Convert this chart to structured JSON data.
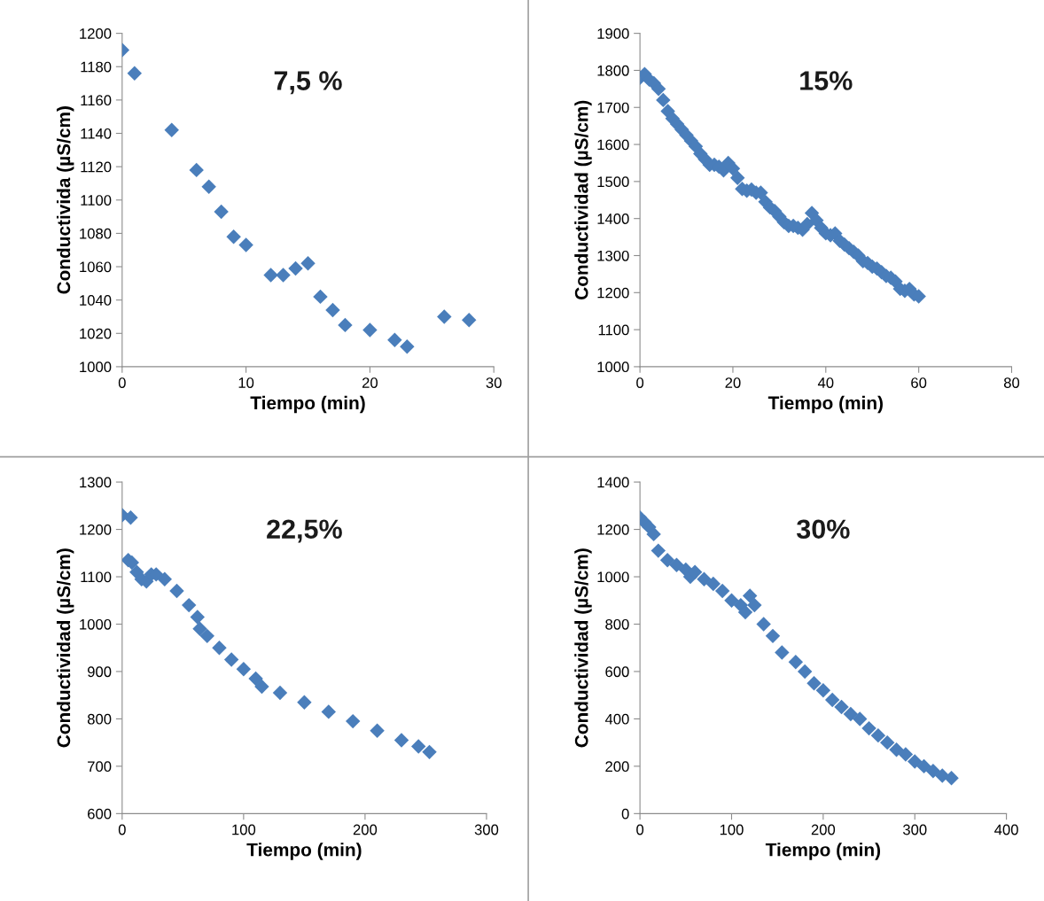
{
  "chart_data": [
    {
      "type": "scatter",
      "title": "7,5 %",
      "xlabel": "Tiempo (min)",
      "ylabel": "Conductivida (µS/cm)",
      "marker": "diamond",
      "grid": false,
      "legend": false,
      "xlim": [
        0,
        30
      ],
      "xticks": [
        0,
        10,
        20,
        30
      ],
      "ylim": [
        1000,
        1200
      ],
      "yticks": [
        1000,
        1020,
        1040,
        1060,
        1080,
        1100,
        1120,
        1140,
        1160,
        1180,
        1200
      ],
      "series": [
        {
          "color": "#4a7ebb",
          "x": [
            0,
            1,
            4,
            6,
            7,
            8,
            9,
            10,
            12,
            13,
            14,
            15,
            16,
            17,
            18,
            20,
            22,
            23,
            26,
            28
          ],
          "values": [
            1190,
            1176,
            1142,
            1118,
            1108,
            1093,
            1078,
            1073,
            1055,
            1055,
            1059,
            1062,
            1042,
            1034,
            1025,
            1022,
            1016,
            1012,
            1030,
            1028
          ]
        }
      ]
    },
    {
      "type": "scatter",
      "title": "15%",
      "xlabel": "Tiempo (min)",
      "ylabel": "Conductividad (µS/cm)",
      "marker": "diamond",
      "grid": false,
      "legend": false,
      "xlim": [
        0,
        80
      ],
      "xticks": [
        0,
        20,
        40,
        60,
        80
      ],
      "ylim": [
        1000,
        1900
      ],
      "yticks": [
        1000,
        1100,
        1200,
        1300,
        1400,
        1500,
        1600,
        1700,
        1800,
        1900
      ],
      "series": [
        {
          "color": "#4a7ebb",
          "x": [
            0,
            1,
            2,
            3,
            4,
            5,
            6,
            7,
            8,
            9,
            10,
            11,
            12,
            13,
            14,
            15,
            16,
            17,
            18,
            19,
            20,
            21,
            22,
            23,
            24,
            25,
            26,
            27,
            28,
            29,
            30,
            31,
            32,
            33,
            34,
            35,
            36,
            37,
            38,
            39,
            40,
            41,
            42,
            43,
            44,
            45,
            46,
            47,
            48,
            49,
            50,
            51,
            52,
            53,
            54,
            55,
            56,
            57,
            58,
            59,
            60
          ],
          "values": [
            1780,
            1790,
            1775,
            1765,
            1750,
            1720,
            1690,
            1670,
            1655,
            1640,
            1625,
            1610,
            1595,
            1575,
            1560,
            1545,
            1545,
            1540,
            1530,
            1550,
            1535,
            1510,
            1480,
            1475,
            1478,
            1470,
            1470,
            1445,
            1430,
            1420,
            1405,
            1390,
            1380,
            1380,
            1375,
            1370,
            1385,
            1415,
            1395,
            1375,
            1360,
            1355,
            1360,
            1340,
            1330,
            1320,
            1310,
            1300,
            1285,
            1280,
            1270,
            1265,
            1255,
            1245,
            1240,
            1230,
            1210,
            1205,
            1210,
            1195,
            1190
          ]
        }
      ]
    },
    {
      "type": "scatter",
      "title": "22,5%",
      "xlabel": "Tiempo (min)",
      "ylabel": "Conductividad (µS/cm)",
      "marker": "diamond",
      "grid": false,
      "legend": false,
      "xlim": [
        0,
        300
      ],
      "xticks": [
        0,
        100,
        200,
        300
      ],
      "ylim": [
        600,
        1300
      ],
      "yticks": [
        600,
        700,
        800,
        900,
        1000,
        1100,
        1200,
        1300
      ],
      "series": [
        {
          "color": "#4a7ebb",
          "x": [
            0,
            7,
            5,
            8,
            12,
            16,
            20,
            24,
            28,
            35,
            45,
            55,
            62,
            64,
            70,
            80,
            90,
            100,
            110,
            115,
            130,
            150,
            170,
            190,
            210,
            230,
            244,
            253
          ],
          "values": [
            1230,
            1225,
            1135,
            1130,
            1110,
            1095,
            1090,
            1105,
            1105,
            1095,
            1070,
            1040,
            1015,
            990,
            975,
            950,
            925,
            905,
            885,
            868,
            855,
            835,
            815,
            795,
            775,
            755,
            742,
            730
          ]
        }
      ]
    },
    {
      "type": "scatter",
      "title": "30%",
      "xlabel": "Tiempo (min)",
      "ylabel": "Conductividad (µS/cm)",
      "marker": "diamond",
      "grid": false,
      "legend": false,
      "xlim": [
        0,
        400
      ],
      "xticks": [
        0,
        100,
        200,
        300,
        400
      ],
      "ylim": [
        0,
        1400
      ],
      "yticks": [
        0,
        200,
        400,
        600,
        800,
        1000,
        1200,
        1400
      ],
      "series": [
        {
          "color": "#4a7ebb",
          "x": [
            0,
            5,
            10,
            15,
            20,
            30,
            40,
            50,
            55,
            60,
            70,
            80,
            90,
            100,
            110,
            115,
            120,
            125,
            135,
            145,
            155,
            170,
            180,
            190,
            200,
            210,
            220,
            230,
            240,
            250,
            260,
            270,
            280,
            290,
            300,
            310,
            320,
            330,
            340
          ],
          "values": [
            1250,
            1230,
            1210,
            1180,
            1110,
            1070,
            1050,
            1030,
            1000,
            1020,
            990,
            970,
            940,
            900,
            880,
            850,
            920,
            880,
            800,
            750,
            680,
            640,
            600,
            550,
            520,
            480,
            450,
            420,
            400,
            360,
            330,
            300,
            270,
            250,
            220,
            200,
            180,
            160,
            150
          ]
        }
      ]
    }
  ]
}
